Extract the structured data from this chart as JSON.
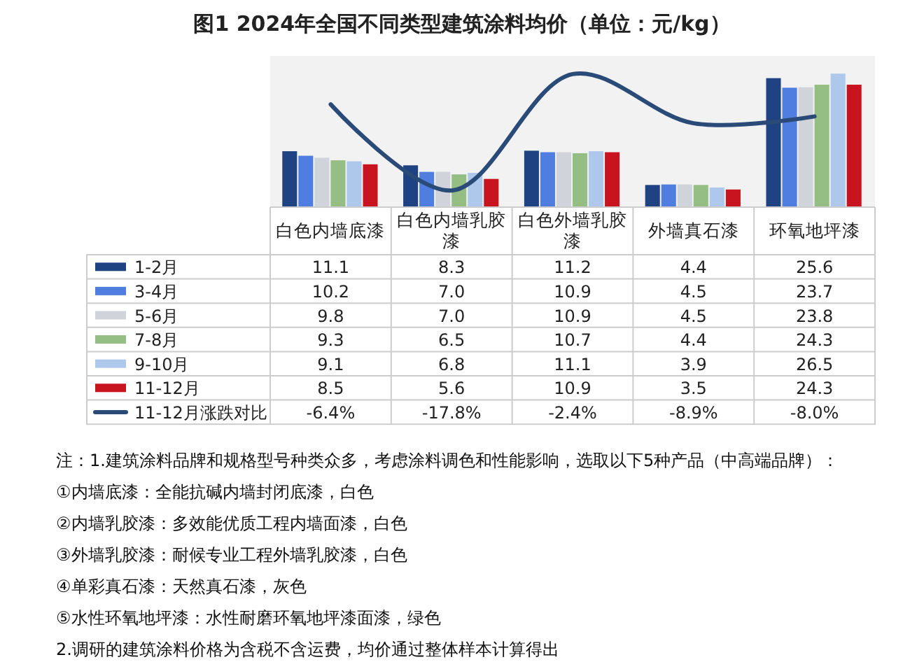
{
  "chart_data": {
    "type": "bar",
    "title": "图1 2024年全国不同类型建筑涂料均价（单位：元/kg）",
    "categories": [
      "白色内墙底漆",
      "白色内墙乳胶漆",
      "白色外墙乳胶漆",
      "外墙真石漆",
      "环氧地坪漆"
    ],
    "series": [
      {
        "name": "1-2月",
        "color": "#1f4282",
        "values": [
          11.1,
          8.3,
          11.2,
          4.4,
          25.6
        ],
        "value_labels": [
          "11.1",
          "8.3",
          "11.2",
          "4.4",
          "25.6"
        ]
      },
      {
        "name": "3-4月",
        "color": "#4f7ee0",
        "values": [
          10.2,
          7.0,
          10.9,
          4.5,
          23.7
        ],
        "value_labels": [
          "10.2",
          "7.0",
          "10.9",
          "4.5",
          "23.7"
        ]
      },
      {
        "name": "5-6月",
        "color": "#d0d3da",
        "values": [
          9.8,
          7.0,
          10.9,
          4.5,
          23.8
        ],
        "value_labels": [
          "9.8",
          "7.0",
          "10.9",
          "4.5",
          "23.8"
        ]
      },
      {
        "name": "7-8月",
        "color": "#95be84",
        "values": [
          9.3,
          6.5,
          10.7,
          4.4,
          24.3
        ],
        "value_labels": [
          "9.3",
          "6.5",
          "10.7",
          "4.4",
          "24.3"
        ]
      },
      {
        "name": "9-10月",
        "color": "#aec8ec",
        "values": [
          9.1,
          6.8,
          11.1,
          3.9,
          26.5
        ],
        "value_labels": [
          "9.1",
          "6.8",
          "11.1",
          "3.9",
          "26.5"
        ]
      },
      {
        "name": "11-12月",
        "color": "#c8141e",
        "values": [
          8.5,
          5.6,
          10.9,
          3.5,
          24.3
        ],
        "value_labels": [
          "8.5",
          "5.6",
          "10.9",
          "3.5",
          "24.3"
        ]
      },
      {
        "name": "11-12月涨跌对比",
        "type": "line",
        "axis": "y2",
        "color": "#2a4a78",
        "values": [
          -6.4,
          -17.8,
          -2.4,
          -8.9,
          -8.0
        ],
        "value_labels": [
          "-6.4%",
          "-17.8%",
          "-2.4%",
          "-8.9%",
          "-8.0%"
        ]
      }
    ],
    "ylim": [
      0,
      30
    ],
    "y2lim": [
      -20,
      0
    ],
    "tick_labels": false,
    "grid": false,
    "legend": "bottom",
    "annotations": [
      "注：1.建筑涂料品牌和规格型号种类众多，考虑涂料调色和性能影响，选取以下5种产品（中高端品牌）：",
      "①内墙底漆：全能抗碱内墙封闭底漆，白色",
      "②内墙乳胶漆：多效能优质工程内墙面漆，白色",
      "③外墙乳胶漆：耐候专业工程外墙乳胶漆，白色",
      "④单彩真石漆：天然真石漆，灰色",
      "⑤水性环氧地坪漆：水性耐磨环氧地坪漆面漆，绿色",
      "2.调研的建筑涂料价格为含税不含运费，均价通过整体样本计算得出"
    ]
  }
}
